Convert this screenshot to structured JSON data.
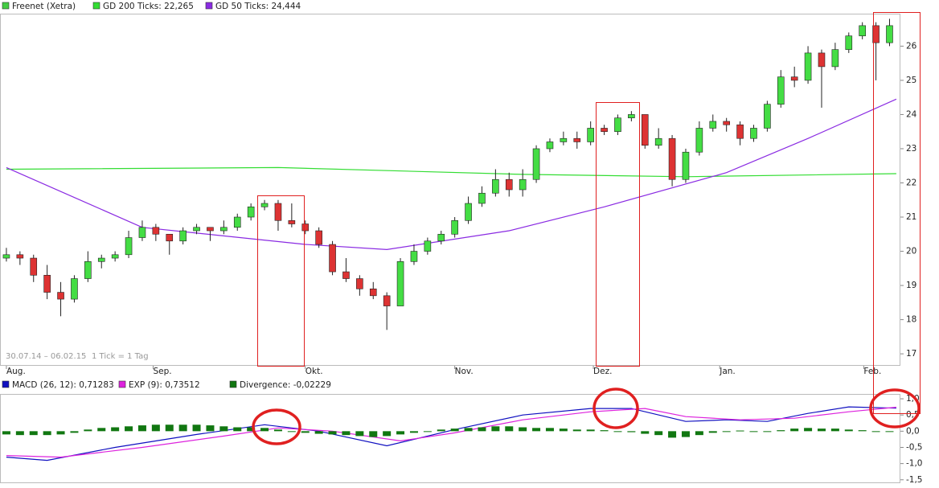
{
  "chart_data": [
    {
      "type": "candlestick",
      "name": "Freenet (Xetra)",
      "color": "#44cc44",
      "up_color": "#44dd44",
      "down_color": "#dd3333",
      "open": [
        19.8,
        19.9,
        19.8,
        19.3,
        18.8,
        18.6,
        19.2,
        19.7,
        19.8,
        19.9,
        20.4,
        20.7,
        20.5,
        20.3,
        20.6,
        20.7,
        20.6,
        20.7,
        21.0,
        21.3,
        21.4,
        20.9,
        20.8,
        20.6,
        20.2,
        19.4,
        19.2,
        18.9,
        18.7,
        18.4,
        19.7,
        20.0,
        20.3,
        20.5,
        20.9,
        21.4,
        21.7,
        22.1,
        21.8,
        22.1,
        23.0,
        23.2,
        23.3,
        23.2,
        23.6,
        23.5,
        23.9,
        24.0,
        23.1,
        23.3,
        22.1,
        22.9,
        23.6,
        23.8,
        23.7,
        23.3,
        23.6,
        24.3,
        25.1,
        25.0,
        25.8,
        25.4,
        25.9,
        26.3,
        26.6,
        26.1
      ],
      "high": [
        20.1,
        20.0,
        19.9,
        19.6,
        19.1,
        19.3,
        20.0,
        19.9,
        20.0,
        20.6,
        20.9,
        20.8,
        20.5,
        20.7,
        20.8,
        20.7,
        20.9,
        21.1,
        21.4,
        21.5,
        21.5,
        21.4,
        20.9,
        20.7,
        20.3,
        19.8,
        19.3,
        19.1,
        18.8,
        19.8,
        20.2,
        20.4,
        20.6,
        21.0,
        21.6,
        21.9,
        22.4,
        22.3,
        22.4,
        23.1,
        23.3,
        23.5,
        23.5,
        23.8,
        23.7,
        24.0,
        24.1,
        24.0,
        23.6,
        23.4,
        23.0,
        23.8,
        24.0,
        23.9,
        23.8,
        23.7,
        24.4,
        25.3,
        25.4,
        26.0,
        25.9,
        26.1,
        26.4,
        26.7,
        26.7,
        26.8
      ],
      "low": [
        19.7,
        19.6,
        19.1,
        18.6,
        18.1,
        18.5,
        19.1,
        19.5,
        19.7,
        19.8,
        20.3,
        20.3,
        19.9,
        20.2,
        20.5,
        20.3,
        20.5,
        20.6,
        20.9,
        21.2,
        20.6,
        20.7,
        20.5,
        20.1,
        19.3,
        19.1,
        18.7,
        18.6,
        17.7,
        18.4,
        19.6,
        19.9,
        20.2,
        20.4,
        20.8,
        21.3,
        21.6,
        21.6,
        21.6,
        22.0,
        22.9,
        23.1,
        23.0,
        23.1,
        23.4,
        23.4,
        23.8,
        23.0,
        23.0,
        21.9,
        22.0,
        22.8,
        23.5,
        23.5,
        23.1,
        23.2,
        23.5,
        24.2,
        24.8,
        24.9,
        24.2,
        25.3,
        25.8,
        26.2,
        25.0,
        26.0
      ],
      "close": [
        19.9,
        19.8,
        19.3,
        18.8,
        18.6,
        19.2,
        19.7,
        19.8,
        19.9,
        20.4,
        20.7,
        20.5,
        20.3,
        20.6,
        20.7,
        20.6,
        20.7,
        21.0,
        21.3,
        21.4,
        20.9,
        20.8,
        20.6,
        20.2,
        19.4,
        19.2,
        18.9,
        18.7,
        18.4,
        19.7,
        20.0,
        20.3,
        20.5,
        20.9,
        21.4,
        21.7,
        22.1,
        21.8,
        22.1,
        23.0,
        23.2,
        23.3,
        23.2,
        23.6,
        23.5,
        23.9,
        24.0,
        23.1,
        23.3,
        22.1,
        22.9,
        23.6,
        23.8,
        23.7,
        23.3,
        23.6,
        24.3,
        25.1,
        25.0,
        25.8,
        25.4,
        25.9,
        26.3,
        26.6,
        26.1,
        26.6
      ],
      "lines": [
        {
          "name": "GD 200 Ticks: 22,265",
          "color": "#33dd33",
          "x": [
            0,
            20,
            38,
            50,
            65.5
          ],
          "values": [
            22.4,
            22.45,
            22.25,
            22.18,
            22.27
          ]
        },
        {
          "name": "GD 50 Ticks: 24,444",
          "color": "#8a2be2",
          "x": [
            0,
            10,
            22,
            28,
            37,
            44,
            53,
            59,
            65.5
          ],
          "values": [
            22.45,
            20.7,
            20.2,
            20.05,
            20.6,
            21.3,
            22.3,
            23.3,
            24.45
          ]
        }
      ],
      "xlim": [
        -0.47,
        65.8
      ],
      "xticks": [
        {
          "value": 0,
          "label": "Aug."
        },
        {
          "value": 10.8,
          "label": "Sep."
        },
        {
          "value": 22,
          "label": "Okt."
        },
        {
          "value": 33,
          "label": "Nov."
        },
        {
          "value": 43.2,
          "label": "Dez."
        },
        {
          "value": 52.5,
          "label": "Jan."
        },
        {
          "value": 63.1,
          "label": "Feb."
        }
      ],
      "ylim": [
        16.65,
        26.95
      ],
      "yticks": [
        17,
        18,
        19,
        20,
        21,
        22,
        23,
        24,
        25,
        26
      ],
      "date_range": "30.07.14 – 06.02.15",
      "tick_note": "1 Tick = 1 Tag"
    },
    {
      "type": "combo",
      "series": [
        {
          "name": "MACD (26, 12): 0,71283",
          "kind": "line",
          "color": "#1010c0",
          "x": [
            0,
            3,
            8,
            14,
            19,
            23,
            28,
            33,
            38,
            43,
            46,
            50,
            53,
            56,
            59,
            62,
            65.5
          ],
          "values": [
            -0.8,
            -0.9,
            -0.5,
            -0.1,
            0.2,
            0.0,
            -0.45,
            0.05,
            0.5,
            0.7,
            0.7,
            0.3,
            0.35,
            0.3,
            0.55,
            0.75,
            0.71
          ]
        },
        {
          "name": "EXP (9): 0,73512",
          "kind": "line",
          "color": "#dd22dd",
          "x": [
            0,
            4,
            10,
            16,
            20,
            24,
            29,
            33,
            38,
            43,
            47,
            50,
            54,
            58,
            62,
            65.5
          ],
          "values": [
            -0.75,
            -0.8,
            -0.5,
            -0.15,
            0.1,
            0.0,
            -0.3,
            -0.05,
            0.35,
            0.6,
            0.7,
            0.45,
            0.35,
            0.4,
            0.6,
            0.74
          ]
        },
        {
          "name": "Divergence: -0,02229",
          "kind": "bar",
          "color": "#117711",
          "values": [
            -0.1,
            -0.12,
            -0.12,
            -0.12,
            -0.1,
            -0.05,
            0.05,
            0.1,
            0.12,
            0.15,
            0.18,
            0.2,
            0.2,
            0.2,
            0.2,
            0.18,
            0.15,
            0.12,
            0.12,
            0.1,
            0.05,
            0,
            -0.05,
            -0.08,
            -0.1,
            -0.12,
            -0.15,
            -0.18,
            -0.15,
            -0.1,
            -0.05,
            0,
            0.05,
            0.08,
            0.1,
            0.12,
            0.15,
            0.15,
            0.12,
            0.1,
            0.1,
            0.08,
            0.05,
            0.05,
            0.03,
            0,
            -0.03,
            -0.08,
            -0.12,
            -0.2,
            -0.18,
            -0.12,
            -0.05,
            0,
            0.02,
            0,
            -0.02,
            0.03,
            0.08,
            0.1,
            0.08,
            0.08,
            0.05,
            0.03,
            0,
            -0.02
          ]
        }
      ],
      "xlim": [
        -0.47,
        65.8
      ],
      "ylim": [
        -1.58,
        1.15
      ],
      "yticks": [
        {
          "value": 1,
          "label": "1,0"
        },
        {
          "value": 0.5,
          "label": "0,5"
        },
        {
          "value": 0,
          "label": "0,0"
        },
        {
          "value": -0.5,
          "label": "-0,5"
        },
        {
          "value": -1,
          "label": "-1,0"
        },
        {
          "value": -1.5,
          "label": "-1,5"
        }
      ]
    }
  ]
}
